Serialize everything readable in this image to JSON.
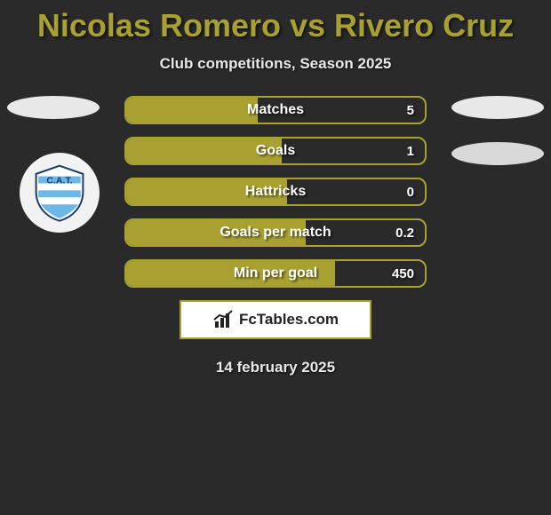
{
  "title": "Nicolas Romero vs Rivero Cruz",
  "subtitle": "Club competitions, Season 2025",
  "date": "14 february 2025",
  "colors": {
    "accent": "#a8a132",
    "bg": "#2a2a2a",
    "text": "#e8e8e8",
    "ellipse": "#e8e8e8"
  },
  "club_badge": {
    "name": "CAT",
    "primary": "#6bb8e8",
    "secondary": "#ffffff"
  },
  "stats": [
    {
      "label": "Matches",
      "value": "5",
      "fill_pct": 44
    },
    {
      "label": "Goals",
      "value": "1",
      "fill_pct": 52
    },
    {
      "label": "Hattricks",
      "value": "0",
      "fill_pct": 54
    },
    {
      "label": "Goals per match",
      "value": "0.2",
      "fill_pct": 60
    },
    {
      "label": "Min per goal",
      "value": "450",
      "fill_pct": 70
    }
  ],
  "logo": {
    "text": "FcTables.com"
  }
}
